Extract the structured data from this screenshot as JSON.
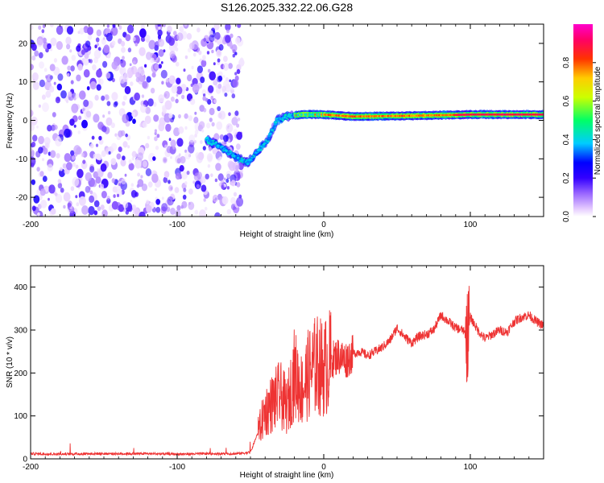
{
  "title": "S126.2025.332.22.06.G28",
  "chart_data": [
    {
      "type": "heatmap",
      "name": "spectrogram",
      "xlabel": "Height of straight line (km)",
      "ylabel": "Frequency (Hz)",
      "xlim": [
        -200,
        150
      ],
      "ylim": [
        -25,
        25
      ],
      "xticks": [
        -200,
        -100,
        0,
        100
      ],
      "yticks": [
        -20,
        -10,
        0,
        10,
        20
      ],
      "colorbar": {
        "label": "Normalized spectral amplitude",
        "range": [
          0,
          1
        ],
        "ticks": [
          0.0,
          0.2,
          0.4,
          0.6,
          0.8
        ],
        "colors": [
          "#ffffff",
          "#e6ccff",
          "#9966ff",
          "#3300ff",
          "#0000ff",
          "#00ccff",
          "#00ff66",
          "#ccff00",
          "#ffcc00",
          "#ff3300",
          "#ff0066",
          "#ff00cc"
        ]
      },
      "noise_region": {
        "x": [
          -200,
          -60
        ],
        "freq": [
          -25,
          25
        ],
        "amplitude": [
          0.02,
          0.25
        ]
      },
      "signal_track": [
        {
          "x": -80,
          "freq": -5
        },
        {
          "x": -70,
          "freq": -7
        },
        {
          "x": -60,
          "freq": -9.5
        },
        {
          "x": -52,
          "freq": -11
        },
        {
          "x": -45,
          "freq": -8
        },
        {
          "x": -38,
          "freq": -5
        },
        {
          "x": -32,
          "freq": 0
        },
        {
          "x": -25,
          "freq": 1
        },
        {
          "x": -15,
          "freq": 1.5
        },
        {
          "x": 0,
          "freq": 1.5
        },
        {
          "x": 20,
          "freq": 1
        },
        {
          "x": 60,
          "freq": 1.2
        },
        {
          "x": 100,
          "freq": 1.5
        },
        {
          "x": 150,
          "freq": 1.5
        }
      ]
    },
    {
      "type": "line",
      "name": "snr",
      "xlabel": "Height of straight line (km)",
      "ylabel": "SNR (10 * v/v)",
      "xlim": [
        -200,
        150
      ],
      "ylim": [
        0,
        450
      ],
      "xticks": [
        -200,
        -100,
        0,
        100
      ],
      "yticks": [
        0,
        100,
        200,
        300,
        400
      ],
      "color": "#ee3333",
      "series": [
        {
          "name": "SNR",
          "x": [
            -200,
            -180,
            -160,
            -140,
            -120,
            -100,
            -80,
            -60,
            -50,
            -45,
            -40,
            -35,
            -30,
            -25,
            -20,
            -15,
            -10,
            -5,
            0,
            5,
            10,
            15,
            20,
            25,
            30,
            35,
            40,
            45,
            50,
            55,
            60,
            65,
            70,
            75,
            80,
            85,
            90,
            95,
            98,
            100,
            105,
            110,
            115,
            120,
            125,
            130,
            135,
            140,
            145,
            150
          ],
          "y": [
            12,
            11,
            12,
            12,
            12,
            11,
            12,
            12,
            15,
            60,
            110,
            130,
            150,
            120,
            200,
            160,
            200,
            220,
            210,
            230,
            240,
            230,
            245,
            250,
            240,
            250,
            260,
            275,
            305,
            285,
            270,
            285,
            290,
            300,
            335,
            320,
            305,
            300,
            280,
            330,
            300,
            280,
            290,
            300,
            295,
            320,
            330,
            335,
            320,
            310
          ]
        }
      ]
    }
  ]
}
